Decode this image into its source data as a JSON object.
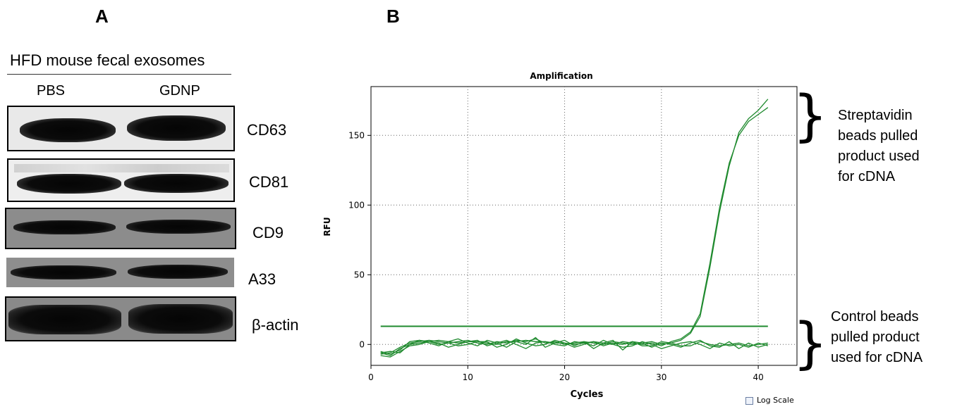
{
  "panel_a": {
    "label": "A",
    "title": "HFD mouse fecal exosomes",
    "lanes": [
      "PBS",
      "GDNP"
    ],
    "markers": [
      "CD63",
      "CD81",
      "CD9",
      "A33",
      "β-actin"
    ]
  },
  "panel_b": {
    "label": "B",
    "annotations": {
      "top": [
        "Streptavidin",
        "beads pulled",
        "product used",
        "for cDNA"
      ],
      "bottom": [
        "Control beads",
        "pulled product",
        "used for cDNA"
      ]
    },
    "log_scale_label": "Log Scale",
    "log_scale_checked": false
  },
  "chart_data": {
    "type": "line",
    "title": "Amplification",
    "xlabel": "Cycles",
    "ylabel": "RFU",
    "xlim": [
      0,
      44
    ],
    "ylim": [
      -15,
      185
    ],
    "xticks": [
      0,
      10,
      20,
      30,
      40
    ],
    "yticks": [
      0,
      50,
      100,
      150
    ],
    "grid": true,
    "threshold": 13,
    "series": [
      {
        "color": "#1f8a2e",
        "x": [
          1,
          2,
          3,
          4,
          5,
          6,
          7,
          8,
          9,
          10,
          11,
          12,
          13,
          14,
          15,
          16,
          17,
          18,
          19,
          20,
          21,
          22,
          23,
          24,
          25,
          26,
          27,
          28,
          29,
          30,
          31,
          32,
          33,
          34,
          35,
          36,
          37,
          38,
          39,
          40,
          41
        ],
        "values": [
          -7,
          -6,
          -2,
          1,
          2,
          3,
          2,
          1,
          2,
          3,
          1,
          0,
          2,
          1,
          3,
          2,
          4,
          1,
          2,
          0,
          1,
          2,
          1,
          0,
          2,
          1,
          0,
          1,
          2,
          0,
          1,
          3,
          8,
          20,
          55,
          95,
          128,
          152,
          162,
          168,
          176
        ]
      },
      {
        "color": "#1f8a2e",
        "x": [
          1,
          2,
          3,
          4,
          5,
          6,
          7,
          8,
          9,
          10,
          11,
          12,
          13,
          14,
          15,
          16,
          17,
          18,
          19,
          20,
          21,
          22,
          23,
          24,
          25,
          26,
          27,
          28,
          29,
          30,
          31,
          32,
          33,
          34,
          35,
          36,
          37,
          38,
          39,
          40,
          41
        ],
        "values": [
          -6,
          -8,
          -3,
          0,
          1,
          2,
          3,
          2,
          1,
          2,
          2,
          1,
          0,
          2,
          2,
          3,
          2,
          2,
          1,
          1,
          0,
          1,
          2,
          1,
          0,
          2,
          1,
          0,
          1,
          -1,
          2,
          4,
          9,
          22,
          58,
          98,
          130,
          150,
          160,
          165,
          170
        ]
      },
      {
        "color": "#1f8a2e",
        "x": [
          1,
          2,
          3,
          4,
          5,
          6,
          7,
          8,
          9,
          10,
          11,
          12,
          13,
          14,
          15,
          16,
          17,
          18,
          19,
          20,
          21,
          22,
          23,
          24,
          25,
          26,
          27,
          28,
          29,
          30,
          31,
          32,
          33,
          34,
          35,
          36,
          37,
          38,
          39,
          40,
          41
        ],
        "values": [
          -5,
          -7,
          -4,
          2,
          3,
          1,
          -1,
          2,
          4,
          1,
          -1,
          3,
          1,
          -2,
          2,
          0,
          5,
          -2,
          1,
          3,
          -1,
          2,
          -3,
          1,
          3,
          -4,
          2,
          1,
          -2,
          1,
          0,
          -2,
          1,
          3,
          -1,
          -2,
          2,
          -3,
          1,
          -2,
          0
        ]
      },
      {
        "color": "#1f8a2e",
        "x": [
          1,
          2,
          3,
          4,
          5,
          6,
          7,
          8,
          9,
          10,
          11,
          12,
          13,
          14,
          15,
          16,
          17,
          18,
          19,
          20,
          21,
          22,
          23,
          24,
          25,
          26,
          27,
          28,
          29,
          30,
          31,
          32,
          33,
          34,
          35,
          36,
          37,
          38,
          39,
          40,
          41
        ],
        "values": [
          -8,
          -9,
          -5,
          -1,
          0,
          2,
          1,
          -2,
          0,
          2,
          3,
          -1,
          1,
          3,
          0,
          -3,
          1,
          2,
          0,
          -1,
          2,
          1,
          -1,
          3,
          0,
          -2,
          -1,
          2,
          0,
          -3,
          -1,
          1,
          2,
          0,
          -3,
          1,
          -1,
          0,
          -2,
          1,
          -1
        ]
      },
      {
        "color": "#1f8a2e",
        "x": [
          1,
          2,
          3,
          4,
          5,
          6,
          7,
          8,
          9,
          10,
          11,
          12,
          13,
          14,
          15,
          16,
          17,
          18,
          19,
          20,
          21,
          22,
          23,
          24,
          25,
          26,
          27,
          28,
          29,
          30,
          31,
          32,
          33,
          34,
          35,
          36,
          37,
          38,
          39,
          40,
          41
        ],
        "values": [
          -6,
          -5,
          -6,
          0,
          3,
          2,
          0,
          1,
          -1,
          0,
          2,
          2,
          -2,
          0,
          4,
          1,
          -1,
          0,
          3,
          1,
          -2,
          0,
          2,
          -1,
          1,
          0,
          2,
          -1,
          -1,
          2,
          1,
          -1,
          -1,
          2,
          0,
          -1,
          0,
          1,
          -1,
          0,
          1
        ]
      }
    ]
  }
}
